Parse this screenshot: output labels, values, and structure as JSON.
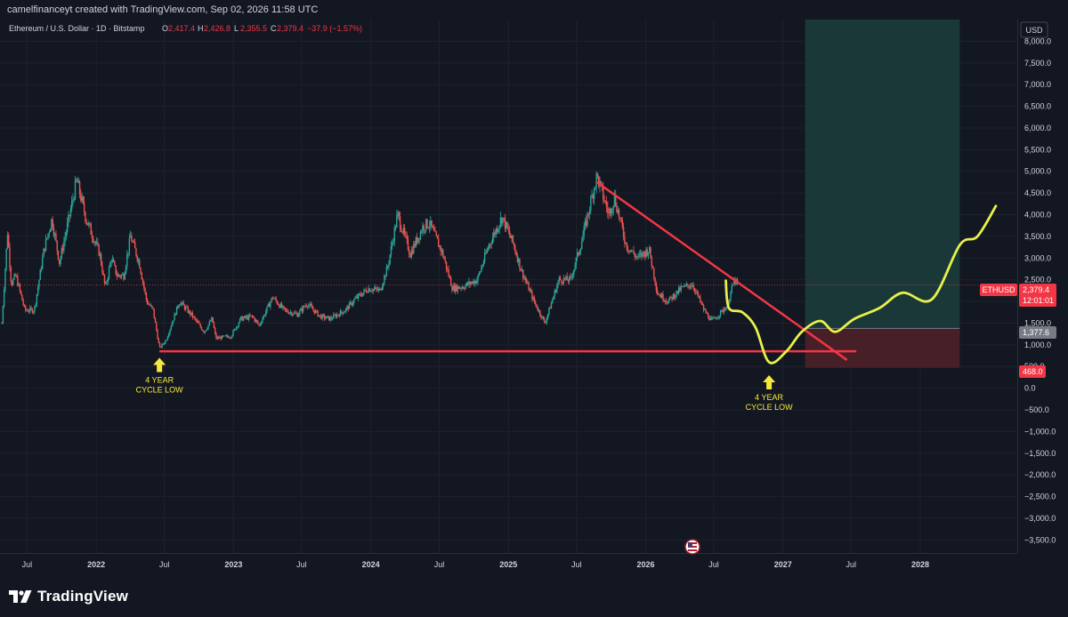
{
  "header": {
    "attribution": "camelfinanceyt created with TradingView.com, Sep 02, 2026 11:58 UTC"
  },
  "footer": {
    "brand": "TradingView"
  },
  "legend": {
    "symbol": "Ethereum / U.S. Dollar · 1D · Bitstamp",
    "o_label": "O",
    "o": "2,417.4",
    "h_label": "H",
    "h": "2,426.8",
    "l_label": "L",
    "l": "2,355.5",
    "c_label": "C",
    "c": "2,379.4",
    "change": "−37.9 (−1.57%)"
  },
  "price_axis": {
    "currency": "USD",
    "current_label": "ETHUSD",
    "current_price": "2,379.4",
    "countdown": "12:01:01",
    "target_label": "1,377.6",
    "stop_label": "468.0"
  },
  "annotations": [
    {
      "lines": [
        "4 YEAR",
        "CYCLE LOW"
      ]
    },
    {
      "lines": [
        "4 YEAR",
        "CYCLE LOW"
      ]
    }
  ],
  "colors": {
    "background": "#131722",
    "up": "#26a69a",
    "down": "#ef5350",
    "trendline": "#f23645",
    "projection": "#e8f04a",
    "target_zone": "#1b3a3a",
    "stop_zone": "#4a2028",
    "arrow": "#f7e93c"
  },
  "icons": {
    "logo": "tradingview-logo-icon",
    "flag": "us-flag-icon"
  },
  "chart_data": {
    "type": "candlestick",
    "symbol": "ETHUSD",
    "interval": "1D",
    "exchange": "Bitstamp",
    "ylim": [
      -3800,
      8500
    ],
    "yticks": [
      8000,
      7500,
      7000,
      6500,
      6000,
      5500,
      5000,
      4500,
      4000,
      3500,
      3000,
      2500,
      2000,
      1500,
      1000,
      500,
      0,
      -500,
      -1000,
      -1500,
      -2000,
      -2500,
      -3000,
      -3500
    ],
    "ytick_labels": [
      "8,000.0",
      "7,500.0",
      "7,000.0",
      "6,500.0",
      "6,000.0",
      "5,500.0",
      "5,000.0",
      "4,500.0",
      "4,000.0",
      "3,500.0",
      "3,000.0",
      "2,500.0",
      "2,000.0",
      "1,500.0",
      "1,000.0",
      "500.0",
      "0.0",
      "−500.0",
      "−1,000.0",
      "−1,500.0",
      "−2,000.0",
      "−2,500.0",
      "−3,000.0",
      "−3,500.0"
    ],
    "xlim": [
      "2021-04-20",
      "2028-09-15"
    ],
    "xticks": [
      {
        "date": "2021-07-01",
        "label": "Jul",
        "major": false
      },
      {
        "date": "2022-01-01",
        "label": "2022",
        "major": true
      },
      {
        "date": "2022-07-01",
        "label": "Jul",
        "major": false
      },
      {
        "date": "2023-01-01",
        "label": "2023",
        "major": true
      },
      {
        "date": "2023-07-01",
        "label": "Jul",
        "major": false
      },
      {
        "date": "2024-01-01",
        "label": "2024",
        "major": true
      },
      {
        "date": "2024-07-01",
        "label": "Jul",
        "major": false
      },
      {
        "date": "2025-01-01",
        "label": "2025",
        "major": true
      },
      {
        "date": "2025-07-01",
        "label": "Jul",
        "major": false
      },
      {
        "date": "2026-01-01",
        "label": "2026",
        "major": true
      },
      {
        "date": "2026-07-01",
        "label": "Jul",
        "major": false
      },
      {
        "date": "2027-01-01",
        "label": "2027",
        "major": true
      },
      {
        "date": "2027-07-01",
        "label": "Jul",
        "major": false
      },
      {
        "date": "2028-01-01",
        "label": "2028",
        "major": true
      }
    ],
    "price_path": [
      [
        "2021-04-25",
        1500
      ],
      [
        "2021-05-10",
        3600
      ],
      [
        "2021-05-20",
        2400
      ],
      [
        "2021-06-01",
        2600
      ],
      [
        "2021-06-25",
        1800
      ],
      [
        "2021-07-20",
        1800
      ],
      [
        "2021-08-15",
        3200
      ],
      [
        "2021-09-05",
        3900
      ],
      [
        "2021-09-25",
        2900
      ],
      [
        "2021-10-20",
        3900
      ],
      [
        "2021-11-10",
        4800
      ],
      [
        "2021-12-05",
        3900
      ],
      [
        "2022-01-10",
        3100
      ],
      [
        "2022-01-25",
        2300
      ],
      [
        "2022-02-10",
        3000
      ],
      [
        "2022-02-25",
        2600
      ],
      [
        "2022-03-15",
        2600
      ],
      [
        "2022-04-02",
        3500
      ],
      [
        "2022-04-25",
        2900
      ],
      [
        "2022-05-15",
        2000
      ],
      [
        "2022-06-01",
        1800
      ],
      [
        "2022-06-18",
        920
      ],
      [
        "2022-07-05",
        1100
      ],
      [
        "2022-08-10",
        2000
      ],
      [
        "2022-09-10",
        1700
      ],
      [
        "2022-10-15",
        1300
      ],
      [
        "2022-11-05",
        1600
      ],
      [
        "2022-11-15",
        1150
      ],
      [
        "2022-12-25",
        1200
      ],
      [
        "2023-01-20",
        1600
      ],
      [
        "2023-02-20",
        1650
      ],
      [
        "2023-03-10",
        1450
      ],
      [
        "2023-04-15",
        2100
      ],
      [
        "2023-05-15",
        1800
      ],
      [
        "2023-06-20",
        1700
      ],
      [
        "2023-07-15",
        1950
      ],
      [
        "2023-08-20",
        1650
      ],
      [
        "2023-09-15",
        1600
      ],
      [
        "2023-10-25",
        1800
      ],
      [
        "2023-11-20",
        2050
      ],
      [
        "2023-12-25",
        2300
      ],
      [
        "2024-01-25",
        2250
      ],
      [
        "2024-02-15",
        2800
      ],
      [
        "2024-03-12",
        4000
      ],
      [
        "2024-04-15",
        3100
      ],
      [
        "2024-05-20",
        3750
      ],
      [
        "2024-06-05",
        3800
      ],
      [
        "2024-07-10",
        3100
      ],
      [
        "2024-08-05",
        2300
      ],
      [
        "2024-09-05",
        2350
      ],
      [
        "2024-10-10",
        2500
      ],
      [
        "2024-11-10",
        3300
      ],
      [
        "2024-12-15",
        3950
      ],
      [
        "2025-01-15",
        3300
      ],
      [
        "2025-02-05",
        2700
      ],
      [
        "2025-03-10",
        2000
      ],
      [
        "2025-04-08",
        1500
      ],
      [
        "2025-05-15",
        2500
      ],
      [
        "2025-06-15",
        2500
      ],
      [
        "2025-07-15",
        3400
      ],
      [
        "2025-08-24",
        4900
      ],
      [
        "2025-09-25",
        4000
      ],
      [
        "2025-10-10",
        4400
      ],
      [
        "2025-11-10",
        3300
      ],
      [
        "2025-12-10",
        3000
      ],
      [
        "2026-01-10",
        3200
      ],
      [
        "2026-02-01",
        2200
      ],
      [
        "2026-03-01",
        2000
      ],
      [
        "2026-04-05",
        2300
      ],
      [
        "2026-05-05",
        2400
      ],
      [
        "2026-06-05",
        1800
      ],
      [
        "2026-06-25",
        1550
      ],
      [
        "2026-07-15",
        1700
      ],
      [
        "2026-08-05",
        1900
      ],
      [
        "2026-08-25",
        2500
      ],
      [
        "2026-09-02",
        2379
      ]
    ],
    "drawings": {
      "horizontal_line": {
        "from": "2022-06-18",
        "to": "2027-07-15",
        "y": 850
      },
      "trendline": {
        "from": [
          "2025-08-24",
          4750
        ],
        "to": [
          "2027-06-20",
          650
        ]
      },
      "target_zone": {
        "from": "2027-03-01",
        "to": "2028-04-15",
        "top": 8500,
        "bottom": 1377.6
      },
      "stop_zone": {
        "from": "2027-03-01",
        "to": "2028-04-15",
        "top": 1377.6,
        "bottom": 468.0
      },
      "projection": [
        [
          "2026-08-02",
          2480
        ],
        [
          "2026-08-10",
          1850
        ],
        [
          "2026-09-15",
          1750
        ],
        [
          "2026-10-20",
          1400
        ],
        [
          "2026-11-25",
          600
        ],
        [
          "2027-01-10",
          850
        ],
        [
          "2027-02-20",
          1300
        ],
        [
          "2027-04-10",
          1550
        ],
        [
          "2027-05-20",
          1300
        ],
        [
          "2027-07-10",
          1600
        ],
        [
          "2027-09-15",
          1850
        ],
        [
          "2027-11-15",
          2200
        ],
        [
          "2028-02-01",
          2050
        ],
        [
          "2028-04-15",
          3300
        ],
        [
          "2028-06-01",
          3500
        ],
        [
          "2028-07-20",
          4200
        ]
      ]
    },
    "annotation_points": [
      {
        "date": "2022-06-18",
        "arrow_tip": 700
      },
      {
        "date": "2026-11-25",
        "arrow_tip": 300
      }
    ]
  }
}
